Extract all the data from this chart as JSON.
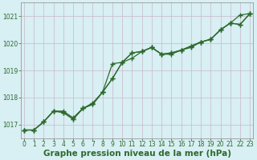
{
  "x": [
    0,
    1,
    2,
    3,
    4,
    5,
    6,
    7,
    8,
    9,
    10,
    11,
    12,
    13,
    14,
    15,
    16,
    17,
    18,
    19,
    20,
    21,
    22,
    23
  ],
  "line1": [
    1016.8,
    1016.8,
    1017.1,
    1017.5,
    1017.5,
    1017.25,
    1017.6,
    1017.8,
    1018.2,
    1018.7,
    1019.3,
    1019.65,
    1019.7,
    1019.85,
    1019.6,
    1019.65,
    1019.75,
    1019.9,
    1020.05,
    1020.15,
    1020.5,
    1020.75,
    1020.7,
    1021.1
  ],
  "line2": [
    1016.8,
    1016.8,
    1017.1,
    1017.5,
    1017.45,
    1017.2,
    1017.6,
    1017.75,
    1018.2,
    1019.25,
    1019.3,
    1019.45,
    1019.7,
    1019.85,
    1019.6,
    1019.65,
    1019.75,
    1019.9,
    1020.05,
    1020.15,
    1020.5,
    1020.75,
    1021.05,
    1021.1
  ],
  "line3": [
    1016.8,
    1016.8,
    1017.1,
    1017.5,
    1017.45,
    1017.2,
    1017.6,
    1017.75,
    1018.2,
    1018.7,
    1019.3,
    1019.65,
    1019.7,
    1019.85,
    1019.6,
    1019.6,
    1019.75,
    1019.85,
    1020.05,
    1020.15,
    1020.5,
    1020.75,
    1020.7,
    1021.1
  ],
  "line_color": "#2d6a2d",
  "marker": "+",
  "bg_color": "#d8eff3",
  "grid_color": "#c9b8c9",
  "ylabel_ticks": [
    1017,
    1018,
    1019,
    1020,
    1021
  ],
  "xlabel_ticks": [
    0,
    1,
    2,
    3,
    4,
    5,
    6,
    7,
    8,
    9,
    10,
    11,
    12,
    13,
    14,
    15,
    16,
    17,
    18,
    19,
    20,
    21,
    22,
    23
  ],
  "ylim": [
    1016.5,
    1021.5
  ],
  "xlim": [
    -0.3,
    23.3
  ],
  "xlabel": "Graphe pression niveau de la mer (hPa)",
  "xlabel_fontsize": 7.5,
  "tick_fontsize": 5.5,
  "line_width": 0.9,
  "marker_size": 4.5,
  "marker_edge_width": 1.0
}
